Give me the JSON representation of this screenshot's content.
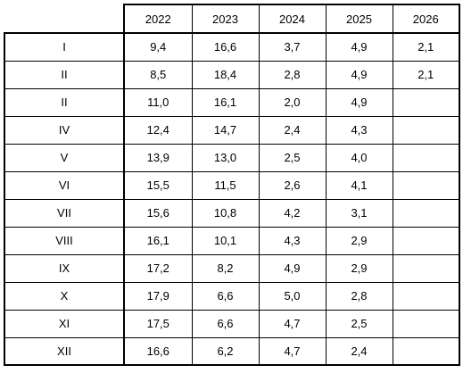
{
  "columns": [
    "2022",
    "2023",
    "2024",
    "2025",
    "2026"
  ],
  "rows": [
    {
      "label": "I",
      "values": [
        "9,4",
        "16,6",
        "3,7",
        "4,9",
        "2,1"
      ]
    },
    {
      "label": "II",
      "values": [
        "8,5",
        "18,4",
        "2,8",
        "4,9",
        "2,1"
      ]
    },
    {
      "label": "II",
      "values": [
        "11,0",
        "16,1",
        "2,0",
        "4,9",
        ""
      ]
    },
    {
      "label": "IV",
      "values": [
        "12,4",
        "14,7",
        "2,4",
        "4,3",
        ""
      ]
    },
    {
      "label": "V",
      "values": [
        "13,9",
        "13,0",
        "2,5",
        "4,0",
        ""
      ]
    },
    {
      "label": "VI",
      "values": [
        "15,5",
        "11,5",
        "2,6",
        "4,1",
        ""
      ]
    },
    {
      "label": "VII",
      "values": [
        "15,6",
        "10,8",
        "4,2",
        "3,1",
        ""
      ]
    },
    {
      "label": "VIII",
      "values": [
        "16,1",
        "10,1",
        "4,3",
        "2,9",
        ""
      ]
    },
    {
      "label": "IX",
      "values": [
        "17,2",
        "8,2",
        "4,9",
        "2,9",
        ""
      ]
    },
    {
      "label": "X",
      "values": [
        "17,9",
        "6,6",
        "5,0",
        "2,8",
        ""
      ]
    },
    {
      "label": "XI",
      "values": [
        "17,5",
        "6,6",
        "4,7",
        "2,5",
        ""
      ]
    },
    {
      "label": "XII",
      "values": [
        "16,6",
        "6,2",
        "4,7",
        "2,4",
        ""
      ]
    }
  ]
}
